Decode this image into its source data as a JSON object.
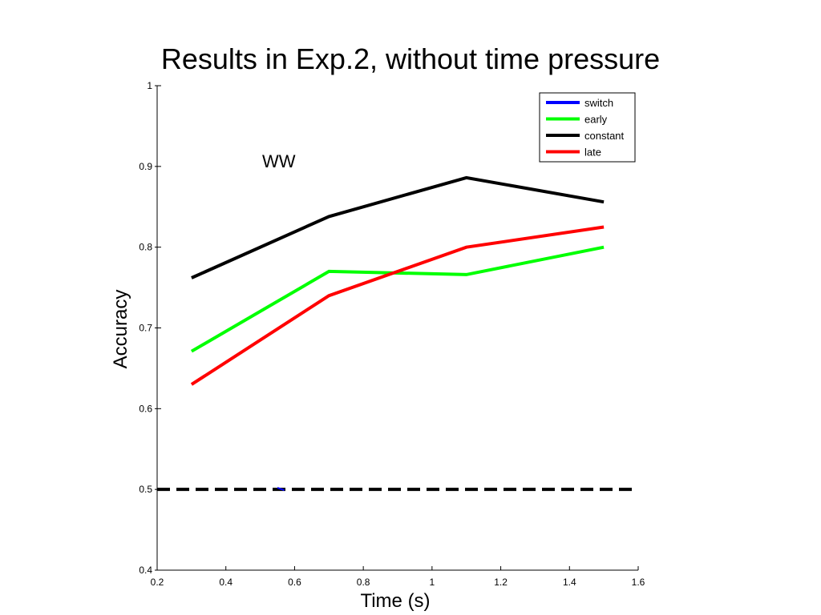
{
  "title": "Results in Exp.2, without time pressure",
  "chart_data": {
    "type": "line",
    "xlabel": "Time (s)",
    "ylabel": "Accuracy",
    "xlim": [
      0.2,
      1.6
    ],
    "ylim": [
      0.4,
      1.0
    ],
    "xticks": [
      "0.2",
      "0.4",
      "0.6",
      "0.8",
      "1",
      "1.2",
      "1.4",
      "1.6"
    ],
    "yticks": [
      "0.4",
      "0.5",
      "0.6",
      "0.7",
      "0.8",
      "0.9",
      "1"
    ],
    "grid": false,
    "legend_position": "top-right",
    "annotation": "WW",
    "series": [
      {
        "name": "switch",
        "color": "#0000ff",
        "x": [
          0.55,
          0.57
        ],
        "y": [
          0.502,
          0.499
        ]
      },
      {
        "name": "early",
        "color": "#00ff00",
        "x": [
          0.3,
          0.7,
          1.1,
          1.5
        ],
        "y": [
          0.671,
          0.77,
          0.766,
          0.8
        ]
      },
      {
        "name": "constant",
        "color": "#000000",
        "x": [
          0.3,
          0.7,
          1.1,
          1.5
        ],
        "y": [
          0.762,
          0.838,
          0.886,
          0.856
        ]
      },
      {
        "name": "late",
        "color": "#ff0000",
        "x": [
          0.3,
          0.7,
          1.1,
          1.5
        ],
        "y": [
          0.63,
          0.74,
          0.8,
          0.825
        ]
      }
    ],
    "reference_line": {
      "y": 0.5,
      "x": [
        0.2,
        1.6
      ],
      "style": "dashed",
      "color": "#000000"
    }
  }
}
